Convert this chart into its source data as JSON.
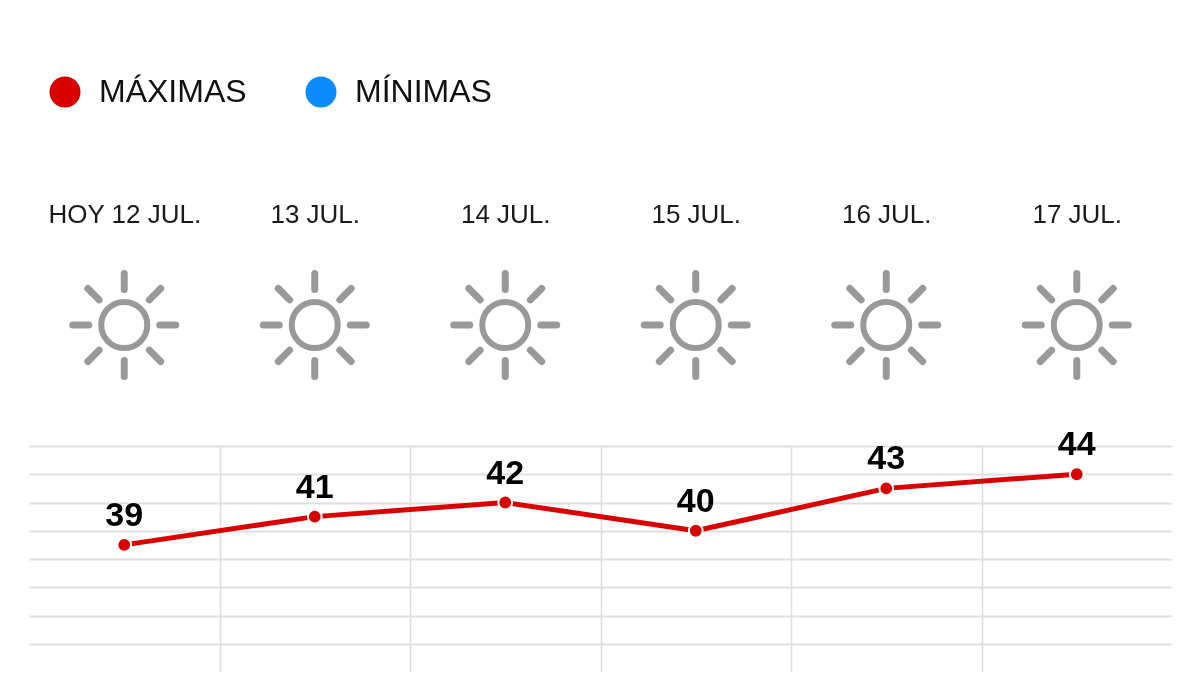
{
  "chart_data": {
    "type": "line",
    "categories": [
      "HOY 12 JUL.",
      "13 JUL.",
      "14 JUL.",
      "15 JUL.",
      "16 JUL.",
      "17 JUL."
    ],
    "series": [
      {
        "name": "MÁXIMAS",
        "color": "#d90000",
        "values": [
          39,
          41,
          42,
          40,
          43,
          44
        ]
      },
      {
        "name": "MÍNIMAS",
        "color": "#0a8cff",
        "values": [
          null,
          null,
          null,
          null,
          null,
          null
        ]
      }
    ],
    "ylim": [
      30,
      46
    ],
    "yticks": [
      {
        "value": 32,
        "label": null
      },
      {
        "value": 34,
        "label": null
      },
      {
        "value": 36,
        "label": null
      },
      {
        "value": 38,
        "label": null
      },
      {
        "value": 40,
        "label": null
      },
      {
        "value": 42,
        "label": null
      },
      {
        "value": 44,
        "label": null
      },
      {
        "value": 46,
        "label": null
      }
    ],
    "tick_labels": "x",
    "grid": true,
    "legend": "top left",
    "marker": "circle",
    "line_style": "solid",
    "data_labels": true
  }
}
